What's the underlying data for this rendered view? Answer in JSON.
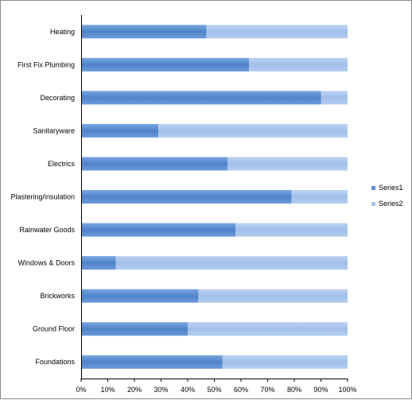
{
  "chart_data": {
    "type": "bar",
    "orientation": "horizontal",
    "stacked": "percent",
    "categories": [
      "Heating",
      "First Fix Plumbing",
      "Decorating",
      "Sanitaryware",
      "Electrics",
      "Plastering/insulation",
      "Rainwater Goods",
      "Windows & Doors",
      "Brickworks",
      "Ground Floor",
      "Foundations"
    ],
    "series": [
      {
        "name": "Series1",
        "color": "#5b8fd4",
        "values": [
          47,
          63,
          90,
          29,
          55,
          79,
          58,
          13,
          44,
          40,
          53
        ]
      },
      {
        "name": "Series2",
        "color": "#a9c4ec",
        "values": [
          53,
          37,
          10,
          71,
          45,
          21,
          42,
          87,
          56,
          60,
          47
        ]
      }
    ],
    "x_ticks": [
      "0%",
      "10%",
      "20%",
      "30%",
      "40%",
      "50%",
      "60%",
      "70%",
      "80%",
      "90%",
      "100%"
    ],
    "xlim": [
      0,
      100
    ],
    "grid": false,
    "legend_position": "right"
  }
}
